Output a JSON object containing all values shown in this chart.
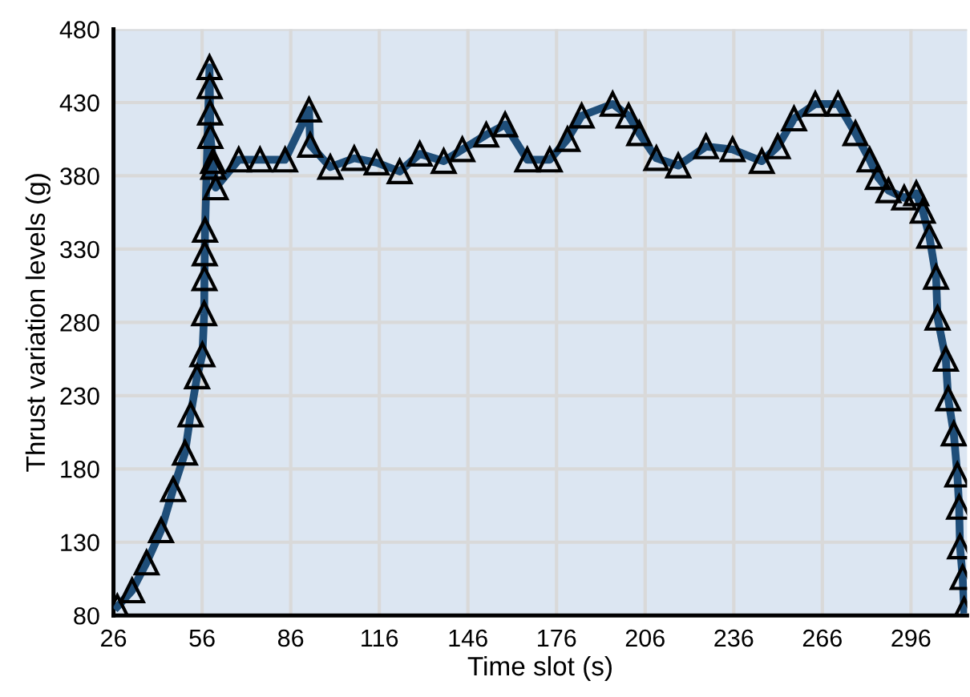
{
  "chart_data": {
    "type": "line",
    "xlabel": "Time slot (s)",
    "ylabel": "Thrust variation levels (g)",
    "xlim": [
      26,
      315
    ],
    "xticks": [
      26,
      56,
      86,
      116,
      146,
      176,
      206,
      236,
      266,
      296
    ],
    "ylim": [
      80,
      480
    ],
    "yticks": [
      80,
      130,
      180,
      230,
      280,
      330,
      380,
      430,
      480
    ],
    "grid": true,
    "marker": "triangle",
    "line_style": "solid",
    "legend": false,
    "series": [
      {
        "color": "#1f4e79",
        "x": [
          27.3,
          32.3,
          37.2,
          42.1,
          46.2,
          50.2,
          52.1,
          54.3,
          56.1,
          56.7,
          56.8,
          56.9,
          57.0,
          58.5,
          58.6,
          58.7,
          58.8,
          59.7,
          59.8,
          60.6,
          68.4,
          75.6,
          84.1,
          92.2,
          92.6,
          99.4,
          107.5,
          115.1,
          122.9,
          129.7,
          137.8,
          144.1,
          152.2,
          158.6,
          166.1,
          173.7,
          179.7,
          184.5,
          195,
          200.4,
          204,
          209.8,
          217.2,
          226.6,
          235.6,
          245.5,
          250.9,
          256.4,
          263.6,
          271.3,
          277.2,
          282,
          284.8,
          288.4,
          293.7,
          297.8,
          300,
          302.2,
          304.5,
          305,
          307.8,
          308.6,
          310.5,
          311.7,
          312.3,
          312.6,
          313.5,
          314
        ],
        "values": [
          86,
          97,
          116,
          138,
          166,
          191,
          217,
          243,
          258,
          286,
          310,
          327,
          343,
          454,
          441,
          423,
          407,
          390,
          386,
          372,
          391,
          391,
          391,
          425,
          401,
          386,
          392,
          389,
          383,
          395,
          390,
          398,
          408,
          415,
          391,
          391,
          405,
          421,
          429,
          421,
          409,
          392,
          387,
          400,
          398,
          390,
          400,
          419,
          429,
          429,
          409,
          391,
          379,
          370,
          365,
          368,
          356,
          339,
          311,
          283,
          255,
          228,
          204,
          176,
          154,
          127,
          106,
          84
        ]
      }
    ]
  }
}
